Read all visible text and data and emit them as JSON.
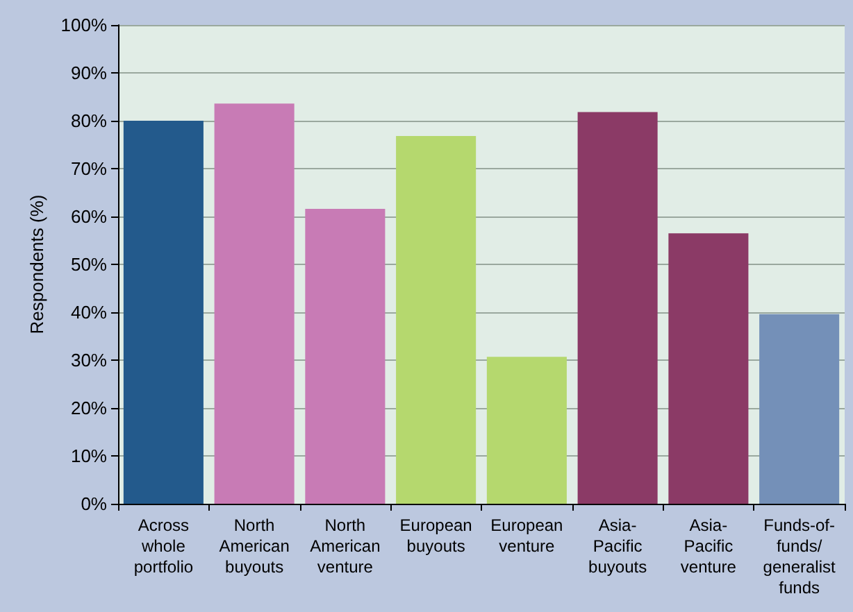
{
  "chart_data": {
    "type": "bar",
    "ylabel": "Respondents (%)",
    "categories": [
      "Across whole portfolio",
      "North American buyouts",
      "North American venture",
      "European buyouts",
      "European venture",
      "Asia-Pacific buyouts",
      "Asia-Pacific venture",
      "Funds-of-funds/ generalist funds"
    ],
    "values": [
      80,
      83.6,
      61.6,
      76.8,
      30.7,
      81.8,
      56.5,
      39.6
    ],
    "colors": [
      "#235a8c",
      "#c87bb5",
      "#c87bb5",
      "#b5d86e",
      "#b5d86e",
      "#8b3a66",
      "#8b3a66",
      "#7490b8"
    ],
    "ylim": [
      0,
      100
    ],
    "yticks": [
      {
        "value": 0,
        "label": "0%"
      },
      {
        "value": 10,
        "label": "10%"
      },
      {
        "value": 20,
        "label": "20%"
      },
      {
        "value": 30,
        "label": "30%"
      },
      {
        "value": 40,
        "label": "40%"
      },
      {
        "value": 50,
        "label": "50%"
      },
      {
        "value": 60,
        "label": "60%"
      },
      {
        "value": 70,
        "label": "70%"
      },
      {
        "value": 80,
        "label": "80%"
      },
      {
        "value": 90,
        "label": "90%"
      },
      {
        "value": 100,
        "label": "100%"
      }
    ],
    "grid": "y"
  }
}
